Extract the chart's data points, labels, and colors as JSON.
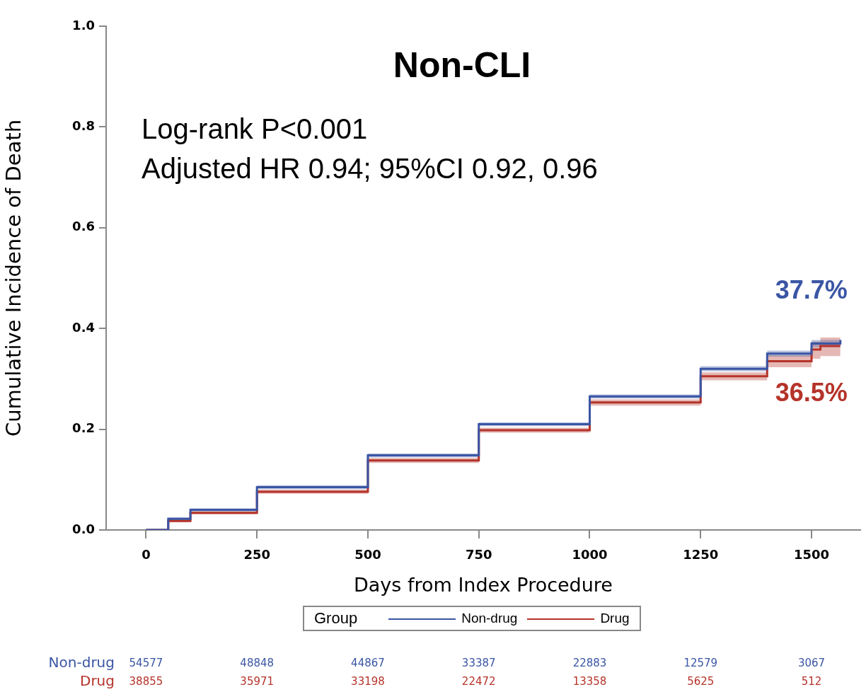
{
  "chart_data": {
    "type": "step",
    "title": "Non-CLI",
    "xlabel": "Days from Index Procedure",
    "ylabel": "Cumulative Incidence of Death",
    "legend_title": "Group",
    "legend": "bottom",
    "grid": false,
    "marker": "none",
    "xlim": [
      -90,
      1610
    ],
    "xticks": [
      0,
      250,
      500,
      750,
      1000,
      1250,
      1500
    ],
    "ylim": [
      0,
      1.0
    ],
    "yticks": [
      {
        "value": 0,
        "label": "0.0"
      },
      0.2,
      0.4,
      0.6,
      0.8,
      {
        "value": 1.0,
        "label": "1.0"
      }
    ],
    "annotations": [
      "Log-rank P<0.001",
      "Adjusted HR 0.94; 95%CI 0.92, 0.96",
      "Non-drug",
      "54577",
      "48848",
      "44867",
      "33387",
      "22883",
      "12579",
      "3067",
      "Drug",
      "38855",
      "35971",
      "33198",
      "22472",
      "13358",
      "5625",
      "512"
    ],
    "series": [
      {
        "name": "Non-drug",
        "color": "#3a55a4",
        "x": [
          0,
          50,
          100,
          250,
          500,
          750,
          1000,
          1250,
          1400,
          1500,
          1565
        ],
        "values": [
          0,
          0.022,
          0.04,
          0.085,
          0.148,
          0.21,
          0.265,
          0.32,
          0.35,
          0.37,
          0.377
        ],
        "lower": [
          0,
          0.019,
          0.037,
          0.081,
          0.144,
          0.206,
          0.261,
          0.315,
          0.344,
          0.363,
          0.369
        ],
        "upper": [
          0,
          0.025,
          0.043,
          0.089,
          0.152,
          0.214,
          0.269,
          0.325,
          0.356,
          0.377,
          0.385
        ],
        "value_labels": [
          null,
          null,
          null,
          null,
          null,
          null,
          null,
          null,
          null,
          null,
          "37.7%"
        ]
      },
      {
        "name": "Drug",
        "color": "#b5332a",
        "x": [
          0,
          50,
          100,
          250,
          500,
          750,
          1000,
          1250,
          1400,
          1500,
          1520,
          1565
        ],
        "values": [
          0,
          0.018,
          0.034,
          0.076,
          0.138,
          0.198,
          0.253,
          0.305,
          0.335,
          0.358,
          0.365,
          0.365
        ],
        "lower": [
          0,
          0.015,
          0.031,
          0.072,
          0.133,
          0.193,
          0.247,
          0.297,
          0.323,
          0.34,
          0.345,
          0.345
        ],
        "upper": [
          0,
          0.021,
          0.037,
          0.08,
          0.143,
          0.203,
          0.259,
          0.313,
          0.347,
          0.374,
          0.382,
          0.382
        ],
        "value_labels": [
          null,
          null,
          null,
          null,
          null,
          null,
          null,
          null,
          null,
          null,
          null,
          "36.5%"
        ]
      }
    ]
  }
}
